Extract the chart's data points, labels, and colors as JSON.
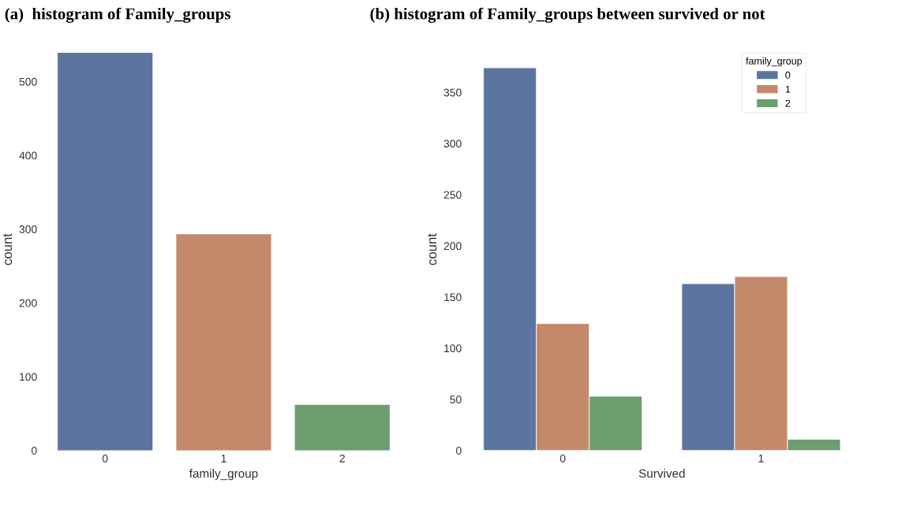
{
  "chart_data": [
    {
      "type": "bar",
      "title": "(a)  histogram of Family_groups",
      "xlabel": "family_group",
      "ylabel": "count",
      "categories": [
        "0",
        "1",
        "2"
      ],
      "values": [
        539,
        293,
        62
      ],
      "colors": [
        "#5c74a0",
        "#c4896a",
        "#6c9e70"
      ],
      "ylim": [
        0,
        545
      ],
      "yticks": [
        0,
        100,
        200,
        300,
        400,
        500
      ],
      "grid": false,
      "legend": false
    },
    {
      "type": "bar",
      "title": "(b) histogram of Family_groups between survived or not",
      "xlabel": "Survived",
      "ylabel": "count",
      "legend_title": "family_group",
      "categories": [
        "0",
        "1"
      ],
      "series": [
        {
          "name": "0",
          "color": "#5c74a0",
          "values": [
            374,
            163
          ]
        },
        {
          "name": "1",
          "color": "#c4896a",
          "values": [
            124,
            170
          ]
        },
        {
          "name": "2",
          "color": "#6c9e70",
          "values": [
            53,
            11
          ]
        }
      ],
      "ylim": [
        0,
        393
      ],
      "yticks": [
        0,
        50,
        100,
        150,
        200,
        250,
        300,
        350
      ],
      "grid": false,
      "legend": "top right"
    }
  ]
}
